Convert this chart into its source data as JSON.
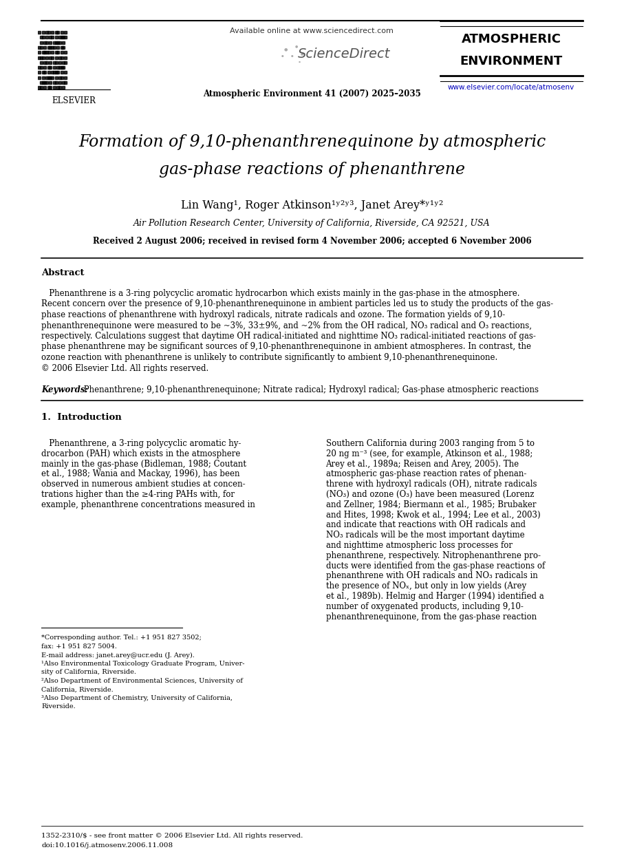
{
  "bg_color": "#ffffff",
  "page_width": 9.07,
  "page_height": 12.38,
  "dpi": 100,
  "header": {
    "elsevier_text": "ELSEVIER",
    "available_online": "Available online at www.sciencedirect.com",
    "sciencedirect_text": "ScienceDirect",
    "journal_name_line1": "ATMOSPHERIC",
    "journal_name_line2": "ENVIRONMENT",
    "journal_info": "Atmospheric Environment 41 (2007) 2025–2035",
    "journal_url": "www.elsevier.com/locate/atmosenv"
  },
  "title_line1": "Formation of 9,10-phenanthrenequinone by atmospheric",
  "title_line2": "gas-phase reactions of phenanthrene",
  "authors_line": "Lin Wang¹, Roger Atkinson¹ʸ²ʸ³, Janet Arey*ʸ¹ʸ²",
  "affiliation": "Air Pollution Research Center, University of California, Riverside, CA 92521, USA",
  "received": "Received 2 August 2006; received in revised form 4 November 2006; accepted 6 November 2006",
  "abstract_title": "Abstract",
  "abstract_lines": [
    "   Phenanthrene is a 3-ring polycyclic aromatic hydrocarbon which exists mainly in the gas-phase in the atmosphere.",
    "Recent concern over the presence of 9,10-phenanthrenequinone in ambient particles led us to study the products of the gas-",
    "phase reactions of phenanthrene with hydroxyl radicals, nitrate radicals and ozone. The formation yields of 9,10-",
    "phenanthrenequinone were measured to be ~3%, 33±9%, and ~2% from the OH radical, NO₃ radical and O₃ reactions,",
    "respectively. Calculations suggest that daytime OH radical-initiated and nighttime NO₃ radical-initiated reactions of gas-",
    "phase phenanthrene may be significant sources of 9,10-phenanthrenequinone in ambient atmospheres. In contrast, the",
    "ozone reaction with phenanthrene is unlikely to contribute significantly to ambient 9,10-phenanthrenequinone.",
    "© 2006 Elsevier Ltd. All rights reserved."
  ],
  "keywords_label": "Keywords:",
  "keywords_text": " Phenanthrene; 9,10-phenanthrenequinone; Nitrate radical; Hydroxyl radical; Gas-phase atmospheric reactions",
  "section1_title": "1.  Introduction",
  "intro_left_lines": [
    "   Phenanthrene, a 3-ring polycyclic aromatic hy-",
    "drocarbon (PAH) which exists in the atmosphere",
    "mainly in the gas-phase (Bidleman, 1988; Coutant",
    "et al., 1988; Wania and Mackay, 1996), has been",
    "observed in numerous ambient studies at concen-",
    "trations higher than the ≥4-ring PAHs with, for",
    "example, phenanthrene concentrations measured in"
  ],
  "intro_right_lines": [
    "Southern California during 2003 ranging from 5 to",
    "20 ng m⁻³ (see, for example, Atkinson et al., 1988;",
    "Arey et al., 1989a; Reisen and Arey, 2005). The",
    "atmospheric gas-phase reaction rates of phenan-",
    "threne with hydroxyl radicals (OH), nitrate radicals",
    "(NO₃) and ozone (O₃) have been measured (Lorenz",
    "and Zellner, 1984; Biermann et al., 1985; Brubaker",
    "and Hites, 1998; Kwok et al., 1994; Lee et al., 2003)",
    "and indicate that reactions with OH radicals and",
    "NO₃ radicals will be the most important daytime",
    "and nighttime atmospheric loss processes for",
    "phenanthrene, respectively. Nitrophenanthrene pro-",
    "ducts were identified from the gas-phase reactions of",
    "phenanthrene with OH radicals and NO₃ radicals in",
    "the presence of NOₓ, but only in low yields (Arey",
    "et al., 1989b). Helmig and Harger (1994) identified a",
    "number of oxygenated products, including 9,10-",
    "phenanthrenequinone, from the gas-phase reaction"
  ],
  "footnote_lines": [
    "*Corresponding author. Tel.: +1 951 827 3502;",
    "fax: +1 951 827 5004.",
    "E-mail address: janet.arey@ucr.edu (J. Arey).",
    "¹Also Environmental Toxicology Graduate Program, Univer-",
    "sity of California, Riverside.",
    "²Also Department of Environmental Sciences, University of",
    "California, Riverside.",
    "³Also Department of Chemistry, University of California,",
    "Riverside."
  ],
  "footer_line1": "1352-2310/$ - see front matter © 2006 Elsevier Ltd. All rights reserved.",
  "footer_line2": "doi:10.1016/j.atmosenv.2006.11.008",
  "link_color": "#0000bb",
  "text_color": "#000000",
  "gray_color": "#555555"
}
